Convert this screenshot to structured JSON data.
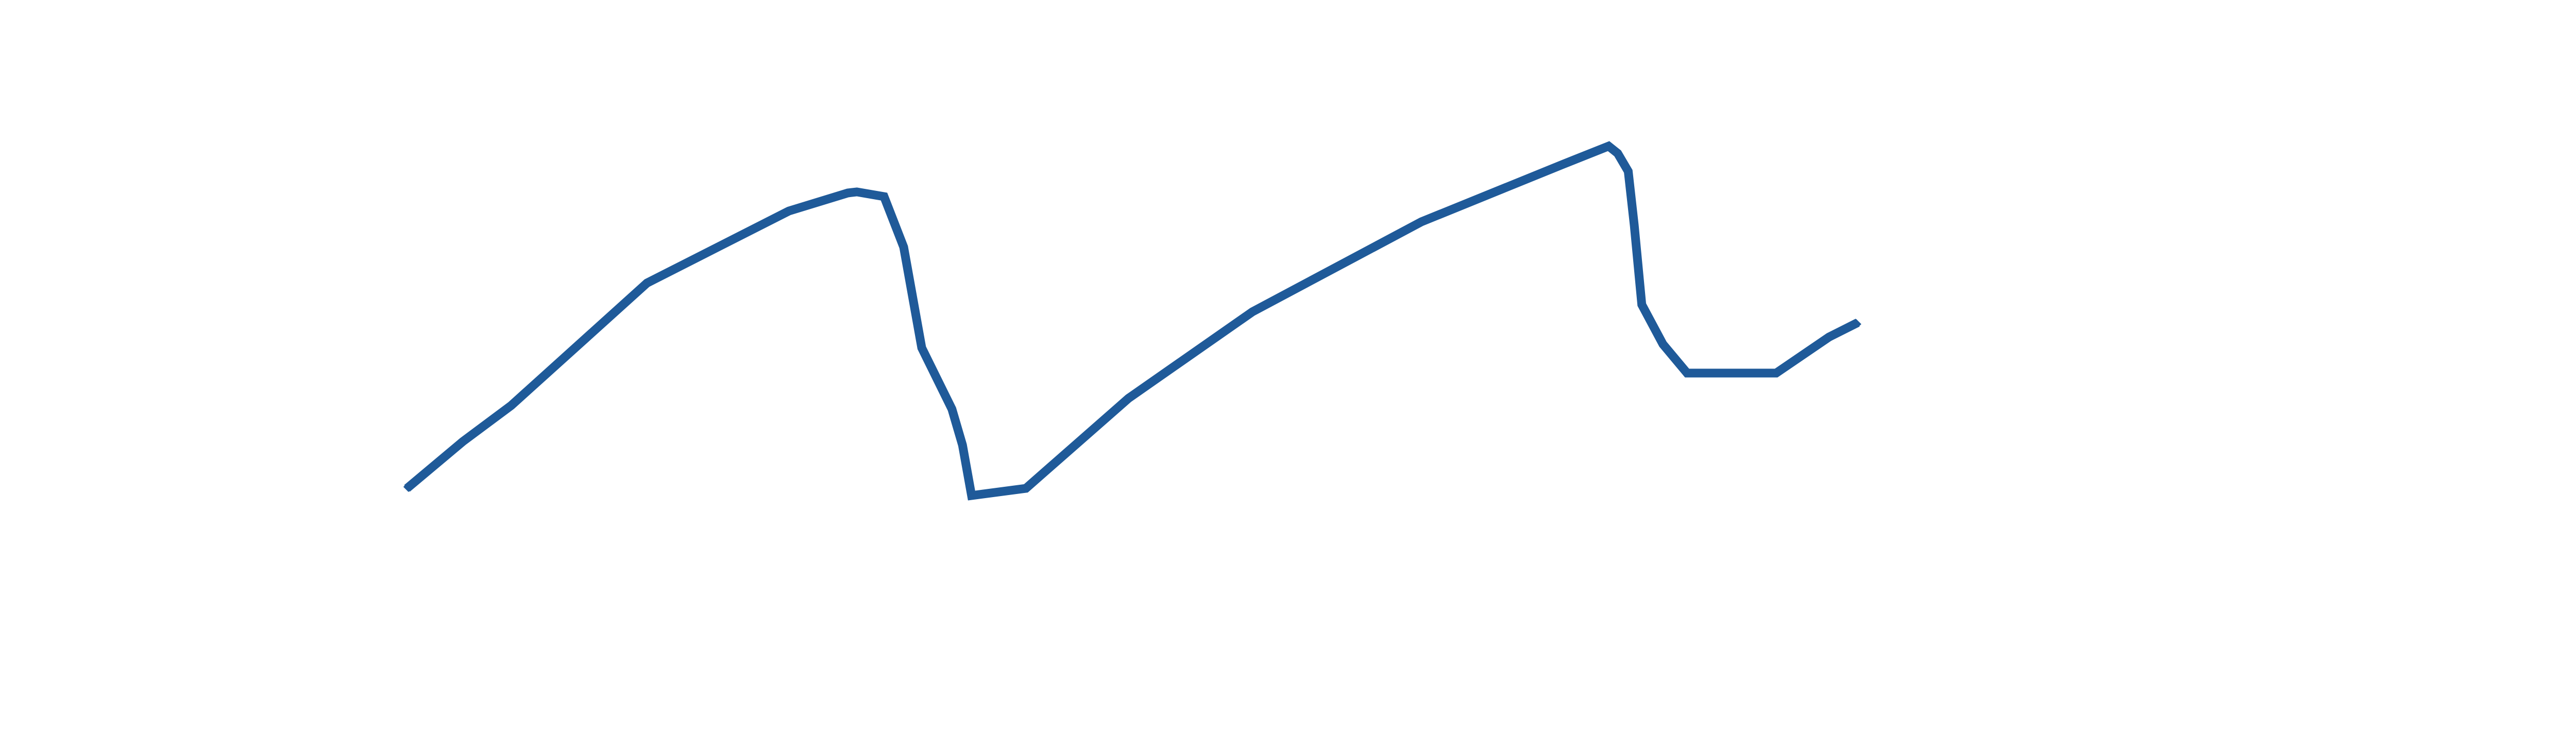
{
  "chart_data": {
    "type": "line",
    "title": "",
    "xlabel": "",
    "ylabel": "",
    "axes_visible": false,
    "grid": false,
    "legend": "none",
    "xlim": [
      0,
      100
    ],
    "ylim": [
      0,
      100
    ],
    "series": [
      {
        "color": "#1f5a99",
        "points": [
          {
            "x": 0.0,
            "y": 3.0
          },
          {
            "x": 3.7,
            "y": 16.0
          },
          {
            "x": 6.9,
            "y": 26.0
          },
          {
            "x": 15.9,
            "y": 60.0
          },
          {
            "x": 25.3,
            "y": 80.0
          },
          {
            "x": 29.2,
            "y": 85.0
          },
          {
            "x": 29.8,
            "y": 85.3
          },
          {
            "x": 31.6,
            "y": 84.0
          },
          {
            "x": 32.9,
            "y": 70.0
          },
          {
            "x": 34.1,
            "y": 42.0
          },
          {
            "x": 36.1,
            "y": 25.0
          },
          {
            "x": 36.8,
            "y": 15.0
          },
          {
            "x": 37.4,
            "y": 1.0
          },
          {
            "x": 41.0,
            "y": 3.0
          },
          {
            "x": 47.8,
            "y": 28.0
          },
          {
            "x": 56.0,
            "y": 52.0
          },
          {
            "x": 67.2,
            "y": 77.0
          },
          {
            "x": 76.6,
            "y": 93.0
          },
          {
            "x": 79.6,
            "y": 98.0
          },
          {
            "x": 80.2,
            "y": 96.0
          },
          {
            "x": 80.9,
            "y": 91.0
          },
          {
            "x": 81.3,
            "y": 76.0
          },
          {
            "x": 81.8,
            "y": 54.0
          },
          {
            "x": 83.2,
            "y": 43.0
          },
          {
            "x": 84.8,
            "y": 35.0
          },
          {
            "x": 90.7,
            "y": 35.0
          },
          {
            "x": 94.2,
            "y": 45.0
          },
          {
            "x": 96.1,
            "y": 49.0
          }
        ]
      }
    ]
  }
}
